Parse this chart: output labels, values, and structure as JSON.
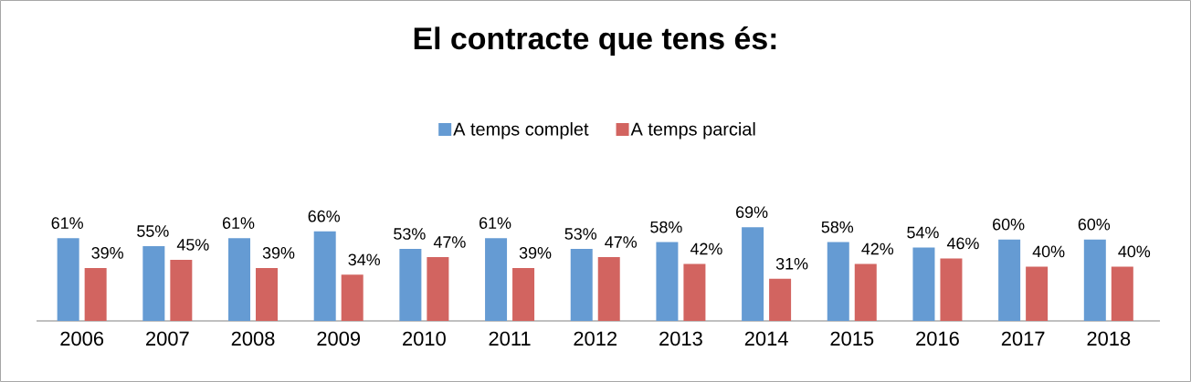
{
  "chart_data": {
    "type": "bar",
    "title": "El contracte que tens és:",
    "categories": [
      "2006",
      "2007",
      "2008",
      "2009",
      "2010",
      "2011",
      "2012",
      "2013",
      "2014",
      "2015",
      "2016",
      "2017",
      "2018"
    ],
    "series": [
      {
        "name": "A temps complet",
        "color": "#659bd3",
        "values": [
          61,
          55,
          61,
          66,
          53,
          61,
          53,
          58,
          69,
          58,
          54,
          60,
          60
        ],
        "value_labels": [
          "61%",
          "55%",
          "61%",
          "66%",
          "53%",
          "61%",
          "53%",
          "58%",
          "69%",
          "58%",
          "54%",
          "60%",
          "60%"
        ]
      },
      {
        "name": "A temps parcial",
        "color": "#d26460",
        "values": [
          39,
          45,
          39,
          34,
          47,
          39,
          47,
          42,
          31,
          42,
          46,
          40,
          40
        ],
        "value_labels": [
          "39%",
          "45%",
          "39%",
          "34%",
          "47%",
          "39%",
          "47%",
          "42%",
          "31%",
          "42%",
          "46%",
          "40%",
          "40%"
        ]
      }
    ],
    "legend": "top"
  }
}
